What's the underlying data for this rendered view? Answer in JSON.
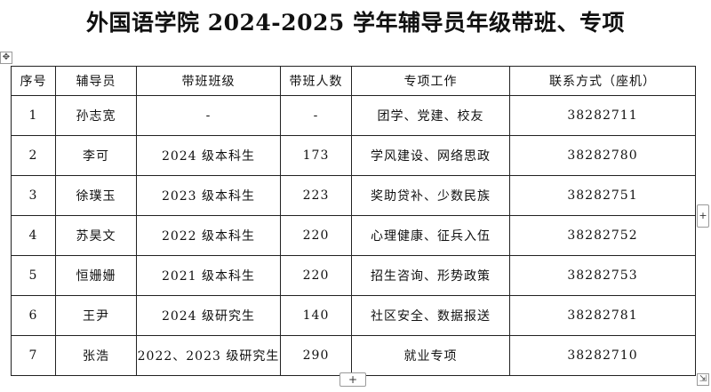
{
  "document": {
    "title": "外国语学院 2024-2025 学年辅导员年级带班、专项"
  },
  "table": {
    "headers": [
      "序号",
      "辅导员",
      "带班班级",
      "带班人数",
      "专项工作",
      "联系方式（座机）"
    ],
    "rows": [
      [
        "1",
        "孙志宽",
        "-",
        "-",
        "团学、党建、校友",
        "38282711"
      ],
      [
        "2",
        "李可",
        "2024 级本科生",
        "173",
        "学风建设、网络思政",
        "38282780"
      ],
      [
        "3",
        "徐璞玉",
        "2023 级本科生",
        "223",
        "奖助贷补、少数民族",
        "38282751"
      ],
      [
        "4",
        "苏昊文",
        "2022 级本科生",
        "220",
        "心理健康、征兵入伍",
        "38282752"
      ],
      [
        "5",
        "恒姗姗",
        "2021 级本科生",
        "220",
        "招生咨询、形势政策",
        "38282753"
      ],
      [
        "6",
        "王尹",
        "2024 级研究生",
        "140",
        "社区安全、数据报送",
        "38282781"
      ],
      [
        "7",
        "张浩",
        "2022、2023 级研究生",
        "290",
        "就业专项",
        "38282710"
      ]
    ]
  },
  "controls": {
    "move_glyph": "✥",
    "add_row_glyph": "+",
    "add_col_glyph": "+",
    "resize_glyph": "⇲"
  },
  "icons": {
    "move": "table-move-icon",
    "add_row": "plus-icon",
    "add_col": "plus-icon",
    "resize": "resize-icon"
  }
}
